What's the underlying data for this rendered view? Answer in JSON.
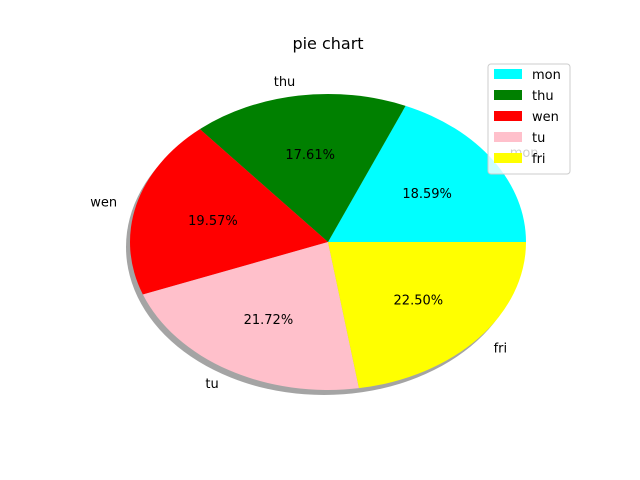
{
  "chart_data": {
    "type": "pie",
    "title": "pie chart",
    "labels": [
      "mon",
      "thu",
      "wen",
      "tu",
      "fri"
    ],
    "values": [
      18.59,
      17.61,
      19.57,
      21.72,
      22.5
    ],
    "percent_labels": [
      "18.59%",
      "17.61%",
      "19.57%",
      "21.72%",
      "22.50%"
    ],
    "colors": [
      "#00ffff",
      "#008000",
      "#ff0000",
      "#ffc0cb",
      "#ffff00"
    ],
    "start_angle_deg": 0,
    "direction": "counterclockwise",
    "shadow": true,
    "legend": {
      "placement": "top-right",
      "entries": [
        "mon",
        "thu",
        "wen",
        "tu",
        "fri"
      ]
    }
  }
}
